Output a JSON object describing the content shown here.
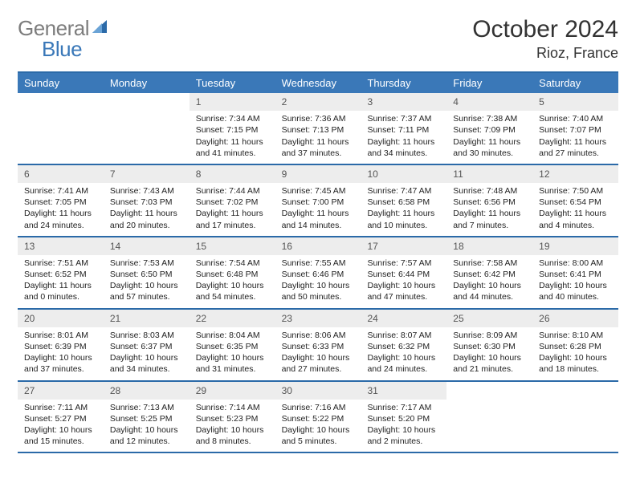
{
  "logo": {
    "word1": "General",
    "word2": "Blue"
  },
  "title": "October 2024",
  "location": "Rioz, France",
  "colors": {
    "header_bg": "#3a78b8",
    "rule": "#2b6aa8",
    "daynum_bg": "#ededed",
    "text": "#222222",
    "logo_gray": "#7d7d7d",
    "logo_blue": "#3a78b8"
  },
  "dow": [
    "Sunday",
    "Monday",
    "Tuesday",
    "Wednesday",
    "Thursday",
    "Friday",
    "Saturday"
  ],
  "weeks": [
    [
      {
        "n": "",
        "sr": "",
        "ss": "",
        "dl": ""
      },
      {
        "n": "",
        "sr": "",
        "ss": "",
        "dl": ""
      },
      {
        "n": "1",
        "sr": "Sunrise: 7:34 AM",
        "ss": "Sunset: 7:15 PM",
        "dl": "Daylight: 11 hours and 41 minutes."
      },
      {
        "n": "2",
        "sr": "Sunrise: 7:36 AM",
        "ss": "Sunset: 7:13 PM",
        "dl": "Daylight: 11 hours and 37 minutes."
      },
      {
        "n": "3",
        "sr": "Sunrise: 7:37 AM",
        "ss": "Sunset: 7:11 PM",
        "dl": "Daylight: 11 hours and 34 minutes."
      },
      {
        "n": "4",
        "sr": "Sunrise: 7:38 AM",
        "ss": "Sunset: 7:09 PM",
        "dl": "Daylight: 11 hours and 30 minutes."
      },
      {
        "n": "5",
        "sr": "Sunrise: 7:40 AM",
        "ss": "Sunset: 7:07 PM",
        "dl": "Daylight: 11 hours and 27 minutes."
      }
    ],
    [
      {
        "n": "6",
        "sr": "Sunrise: 7:41 AM",
        "ss": "Sunset: 7:05 PM",
        "dl": "Daylight: 11 hours and 24 minutes."
      },
      {
        "n": "7",
        "sr": "Sunrise: 7:43 AM",
        "ss": "Sunset: 7:03 PM",
        "dl": "Daylight: 11 hours and 20 minutes."
      },
      {
        "n": "8",
        "sr": "Sunrise: 7:44 AM",
        "ss": "Sunset: 7:02 PM",
        "dl": "Daylight: 11 hours and 17 minutes."
      },
      {
        "n": "9",
        "sr": "Sunrise: 7:45 AM",
        "ss": "Sunset: 7:00 PM",
        "dl": "Daylight: 11 hours and 14 minutes."
      },
      {
        "n": "10",
        "sr": "Sunrise: 7:47 AM",
        "ss": "Sunset: 6:58 PM",
        "dl": "Daylight: 11 hours and 10 minutes."
      },
      {
        "n": "11",
        "sr": "Sunrise: 7:48 AM",
        "ss": "Sunset: 6:56 PM",
        "dl": "Daylight: 11 hours and 7 minutes."
      },
      {
        "n": "12",
        "sr": "Sunrise: 7:50 AM",
        "ss": "Sunset: 6:54 PM",
        "dl": "Daylight: 11 hours and 4 minutes."
      }
    ],
    [
      {
        "n": "13",
        "sr": "Sunrise: 7:51 AM",
        "ss": "Sunset: 6:52 PM",
        "dl": "Daylight: 11 hours and 0 minutes."
      },
      {
        "n": "14",
        "sr": "Sunrise: 7:53 AM",
        "ss": "Sunset: 6:50 PM",
        "dl": "Daylight: 10 hours and 57 minutes."
      },
      {
        "n": "15",
        "sr": "Sunrise: 7:54 AM",
        "ss": "Sunset: 6:48 PM",
        "dl": "Daylight: 10 hours and 54 minutes."
      },
      {
        "n": "16",
        "sr": "Sunrise: 7:55 AM",
        "ss": "Sunset: 6:46 PM",
        "dl": "Daylight: 10 hours and 50 minutes."
      },
      {
        "n": "17",
        "sr": "Sunrise: 7:57 AM",
        "ss": "Sunset: 6:44 PM",
        "dl": "Daylight: 10 hours and 47 minutes."
      },
      {
        "n": "18",
        "sr": "Sunrise: 7:58 AM",
        "ss": "Sunset: 6:42 PM",
        "dl": "Daylight: 10 hours and 44 minutes."
      },
      {
        "n": "19",
        "sr": "Sunrise: 8:00 AM",
        "ss": "Sunset: 6:41 PM",
        "dl": "Daylight: 10 hours and 40 minutes."
      }
    ],
    [
      {
        "n": "20",
        "sr": "Sunrise: 8:01 AM",
        "ss": "Sunset: 6:39 PM",
        "dl": "Daylight: 10 hours and 37 minutes."
      },
      {
        "n": "21",
        "sr": "Sunrise: 8:03 AM",
        "ss": "Sunset: 6:37 PM",
        "dl": "Daylight: 10 hours and 34 minutes."
      },
      {
        "n": "22",
        "sr": "Sunrise: 8:04 AM",
        "ss": "Sunset: 6:35 PM",
        "dl": "Daylight: 10 hours and 31 minutes."
      },
      {
        "n": "23",
        "sr": "Sunrise: 8:06 AM",
        "ss": "Sunset: 6:33 PM",
        "dl": "Daylight: 10 hours and 27 minutes."
      },
      {
        "n": "24",
        "sr": "Sunrise: 8:07 AM",
        "ss": "Sunset: 6:32 PM",
        "dl": "Daylight: 10 hours and 24 minutes."
      },
      {
        "n": "25",
        "sr": "Sunrise: 8:09 AM",
        "ss": "Sunset: 6:30 PM",
        "dl": "Daylight: 10 hours and 21 minutes."
      },
      {
        "n": "26",
        "sr": "Sunrise: 8:10 AM",
        "ss": "Sunset: 6:28 PM",
        "dl": "Daylight: 10 hours and 18 minutes."
      }
    ],
    [
      {
        "n": "27",
        "sr": "Sunrise: 7:11 AM",
        "ss": "Sunset: 5:27 PM",
        "dl": "Daylight: 10 hours and 15 minutes."
      },
      {
        "n": "28",
        "sr": "Sunrise: 7:13 AM",
        "ss": "Sunset: 5:25 PM",
        "dl": "Daylight: 10 hours and 12 minutes."
      },
      {
        "n": "29",
        "sr": "Sunrise: 7:14 AM",
        "ss": "Sunset: 5:23 PM",
        "dl": "Daylight: 10 hours and 8 minutes."
      },
      {
        "n": "30",
        "sr": "Sunrise: 7:16 AM",
        "ss": "Sunset: 5:22 PM",
        "dl": "Daylight: 10 hours and 5 minutes."
      },
      {
        "n": "31",
        "sr": "Sunrise: 7:17 AM",
        "ss": "Sunset: 5:20 PM",
        "dl": "Daylight: 10 hours and 2 minutes."
      },
      {
        "n": "",
        "sr": "",
        "ss": "",
        "dl": ""
      },
      {
        "n": "",
        "sr": "",
        "ss": "",
        "dl": ""
      }
    ]
  ]
}
